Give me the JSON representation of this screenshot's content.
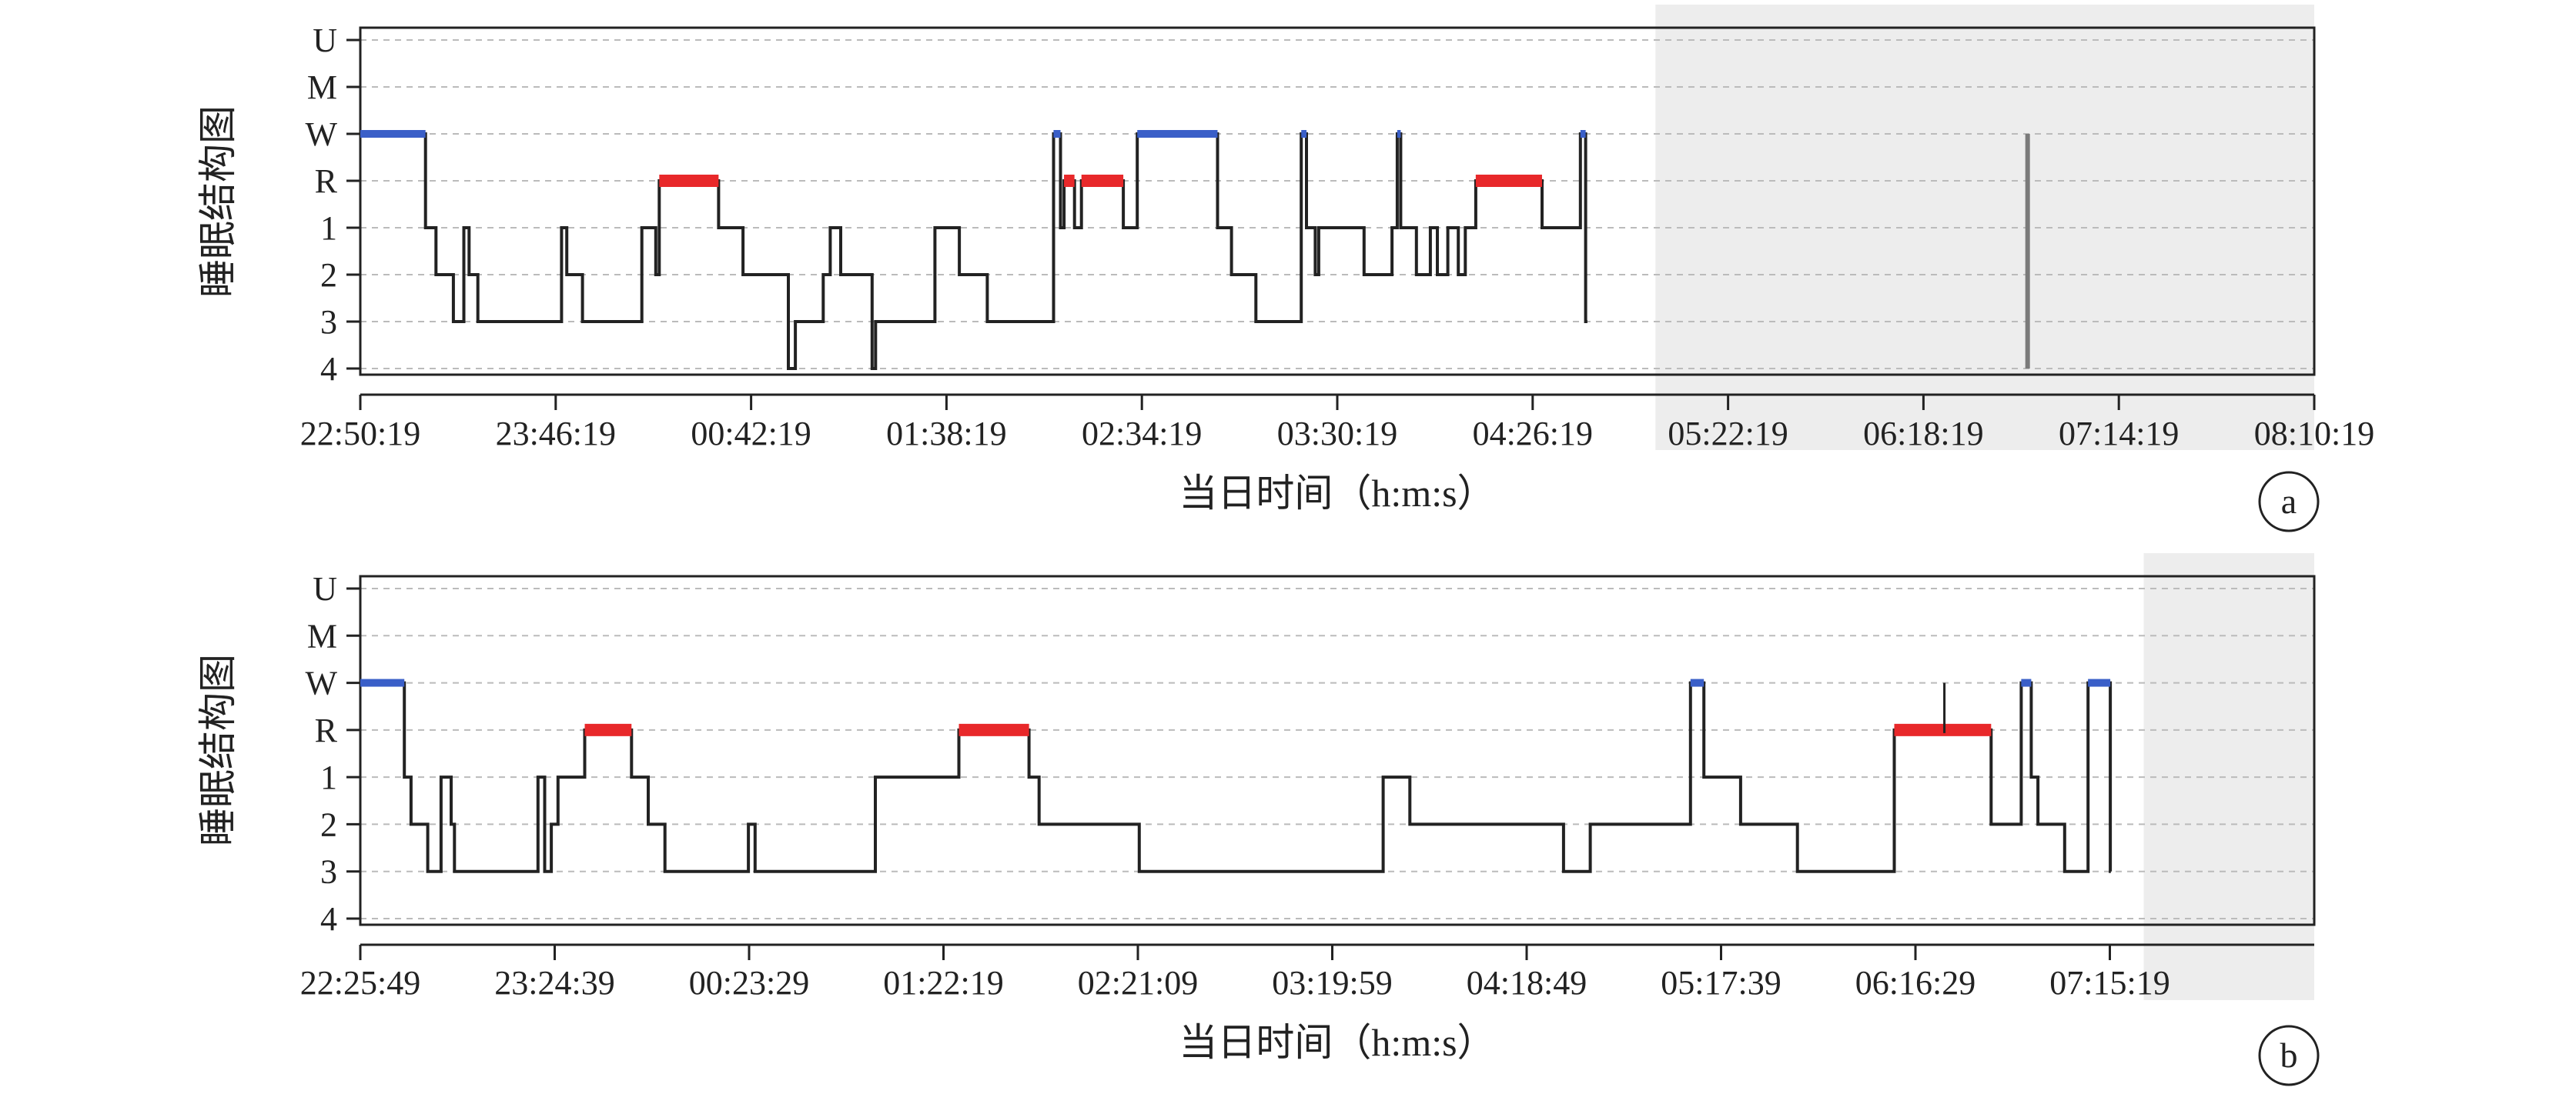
{
  "colors": {
    "sleep": "#222222",
    "rem": "#e8282a",
    "wake": "#3a5fc8",
    "shade": "#ededed",
    "grid": "#bbbbbb"
  },
  "chart_data": [
    {
      "panel": "a",
      "type": "line",
      "style": "hypnogram step plot",
      "ylabel": "睡眠结构图",
      "xlabel": "当日时间（h:m:s）",
      "y_categories": [
        "U",
        "M",
        "W",
        "R",
        "1",
        "2",
        "3",
        "4"
      ],
      "x_tick_labels": [
        "22:50:19",
        "23:46:19",
        "00:42:19",
        "01:38:19",
        "02:34:19",
        "03:30:19",
        "04:26:19",
        "05:22:19",
        "06:18:19",
        "07:14:19",
        "08:10:19"
      ],
      "xlim": [
        "22:50:19",
        "08:10:19"
      ],
      "grid": "horizontal dashed",
      "shaded_span": [
        "05:01:30",
        "08:10:19"
      ],
      "spike_at": [
        "06:48:10",
        "W"
      ],
      "stages": [
        [
          "22:50:19",
          "W"
        ],
        [
          "23:09:00",
          "1"
        ],
        [
          "23:12:00",
          "2"
        ],
        [
          "23:17:00",
          "3"
        ],
        [
          "23:20:00",
          "1"
        ],
        [
          "23:21:30",
          "2"
        ],
        [
          "23:24:00",
          "3"
        ],
        [
          "23:48:00",
          "1"
        ],
        [
          "23:49:30",
          "2"
        ],
        [
          "23:54:00",
          "3"
        ],
        [
          "24:11:00",
          "1"
        ],
        [
          "24:15:00",
          "2"
        ],
        [
          "24:16:00",
          "R"
        ],
        [
          "24:33:00",
          "1"
        ],
        [
          "24:40:00",
          "2"
        ],
        [
          "24:53:00",
          "4"
        ],
        [
          "24:55:00",
          "3"
        ],
        [
          "25:03:00",
          "2"
        ],
        [
          "25:05:00",
          "1"
        ],
        [
          "25:08:00",
          "2"
        ],
        [
          "25:17:00",
          "4"
        ],
        [
          "25:18:00",
          "3"
        ],
        [
          "25:35:00",
          "1"
        ],
        [
          "25:42:00",
          "2"
        ],
        [
          "25:50:00",
          "3"
        ],
        [
          "26:09:00",
          "W"
        ],
        [
          "26:11:00",
          "1"
        ],
        [
          "26:12:00",
          "R"
        ],
        [
          "26:15:00",
          "1"
        ],
        [
          "26:17:00",
          "R"
        ],
        [
          "26:29:00",
          "1"
        ],
        [
          "26:33:00",
          "W"
        ],
        [
          "26:56:00",
          "1"
        ],
        [
          "27:00:00",
          "2"
        ],
        [
          "27:07:00",
          "3"
        ],
        [
          "27:20:00",
          "W"
        ],
        [
          "27:21:30",
          "1"
        ],
        [
          "27:24:00",
          "2"
        ],
        [
          "27:25:00",
          "1"
        ],
        [
          "27:38:00",
          "2"
        ],
        [
          "27:46:00",
          "1"
        ],
        [
          "27:47:30",
          "W"
        ],
        [
          "27:48:30",
          "1"
        ],
        [
          "27:53:00",
          "2"
        ],
        [
          "27:57:00",
          "1"
        ],
        [
          "27:59:00",
          "2"
        ],
        [
          "28:02:00",
          "1"
        ],
        [
          "28:05:00",
          "2"
        ],
        [
          "28:07:00",
          "1"
        ],
        [
          "28:10:00",
          "R"
        ],
        [
          "28:29:00",
          "1"
        ],
        [
          "28:40:00",
          "W"
        ],
        [
          "28:41:30",
          "3"
        ],
        [
          "28:42:00",
          "end"
        ]
      ]
    },
    {
      "panel": "b",
      "type": "line",
      "style": "hypnogram step plot",
      "ylabel": "睡眠结构图",
      "xlabel": "当日时间（h:m:s）",
      "y_categories": [
        "U",
        "M",
        "W",
        "R",
        "1",
        "2",
        "3",
        "4"
      ],
      "x_tick_labels": [
        "22:25:49",
        "23:24:39",
        "00:23:29",
        "01:22:19",
        "02:21:09",
        "03:19:59",
        "04:18:49",
        "05:17:39",
        "06:16:29",
        "07:15:19"
      ],
      "xlim": [
        "22:25:49",
        "08:10:43"
      ],
      "grid": "horizontal dashed",
      "shaded_span": [
        "07:19:40",
        "08:10:43"
      ],
      "spike_at": [
        "06:20:00",
        "W"
      ],
      "stages": [
        [
          "22:25:49",
          "W"
        ],
        [
          "22:39:00",
          "1"
        ],
        [
          "22:41:00",
          "2"
        ],
        [
          "22:46:00",
          "3"
        ],
        [
          "22:50:00",
          "1"
        ],
        [
          "22:53:00",
          "2"
        ],
        [
          "22:54:00",
          "3"
        ],
        [
          "23:19:00",
          "1"
        ],
        [
          "23:21:00",
          "3"
        ],
        [
          "23:23:00",
          "2"
        ],
        [
          "23:25:00",
          "1"
        ],
        [
          "23:33:00",
          "R"
        ],
        [
          "23:47:00",
          "1"
        ],
        [
          "23:52:00",
          "2"
        ],
        [
          "23:57:00",
          "3"
        ],
        [
          "24:22:00",
          "2"
        ],
        [
          "24:24:00",
          "3"
        ],
        [
          "25:00:00",
          "1"
        ],
        [
          "25:25:00",
          "R"
        ],
        [
          "25:46:00",
          "1"
        ],
        [
          "25:49:00",
          "2"
        ],
        [
          "26:19:00",
          "3"
        ],
        [
          "27:32:00",
          "1"
        ],
        [
          "27:40:00",
          "2"
        ],
        [
          "28:26:00",
          "3"
        ],
        [
          "28:34:00",
          "2"
        ],
        [
          "29:04:00",
          "W"
        ],
        [
          "29:08:00",
          "1"
        ],
        [
          "29:19:00",
          "2"
        ],
        [
          "29:36:00",
          "3"
        ],
        [
          "30:05:00",
          "R"
        ],
        [
          "30:34:00",
          "2"
        ],
        [
          "30:43:00",
          "W"
        ],
        [
          "30:46:00",
          "1"
        ],
        [
          "30:48:00",
          "2"
        ],
        [
          "30:56:00",
          "3"
        ],
        [
          "31:03:00",
          "W"
        ],
        [
          "31:09:40",
          "3"
        ],
        [
          "31:09:50",
          "end"
        ]
      ]
    }
  ],
  "panels": {
    "a": {
      "badge": "a",
      "y_labels": [
        "U",
        "M",
        "W",
        "R",
        "1",
        "2",
        "3",
        "4"
      ],
      "x_labels": [
        "22:50:19",
        "23:46:19",
        "00:42:19",
        "01:38:19",
        "02:34:19",
        "03:30:19",
        "04:26:19",
        "05:22:19",
        "06:18:19",
        "07:14:19",
        "08:10:19"
      ],
      "ylabel": "睡眠结构图",
      "xlabel": "当日时间（h:m:s）"
    },
    "b": {
      "badge": "b",
      "y_labels": [
        "U",
        "M",
        "W",
        "R",
        "1",
        "2",
        "3",
        "4"
      ],
      "x_labels": [
        "22:25:49",
        "23:24:39",
        "00:23:29",
        "01:22:19",
        "02:21:09",
        "03:19:59",
        "04:18:49",
        "05:17:39",
        "06:16:29",
        "07:15:19"
      ],
      "ylabel": "睡眠结构图",
      "xlabel": "当日时间（h:m:s）"
    }
  }
}
